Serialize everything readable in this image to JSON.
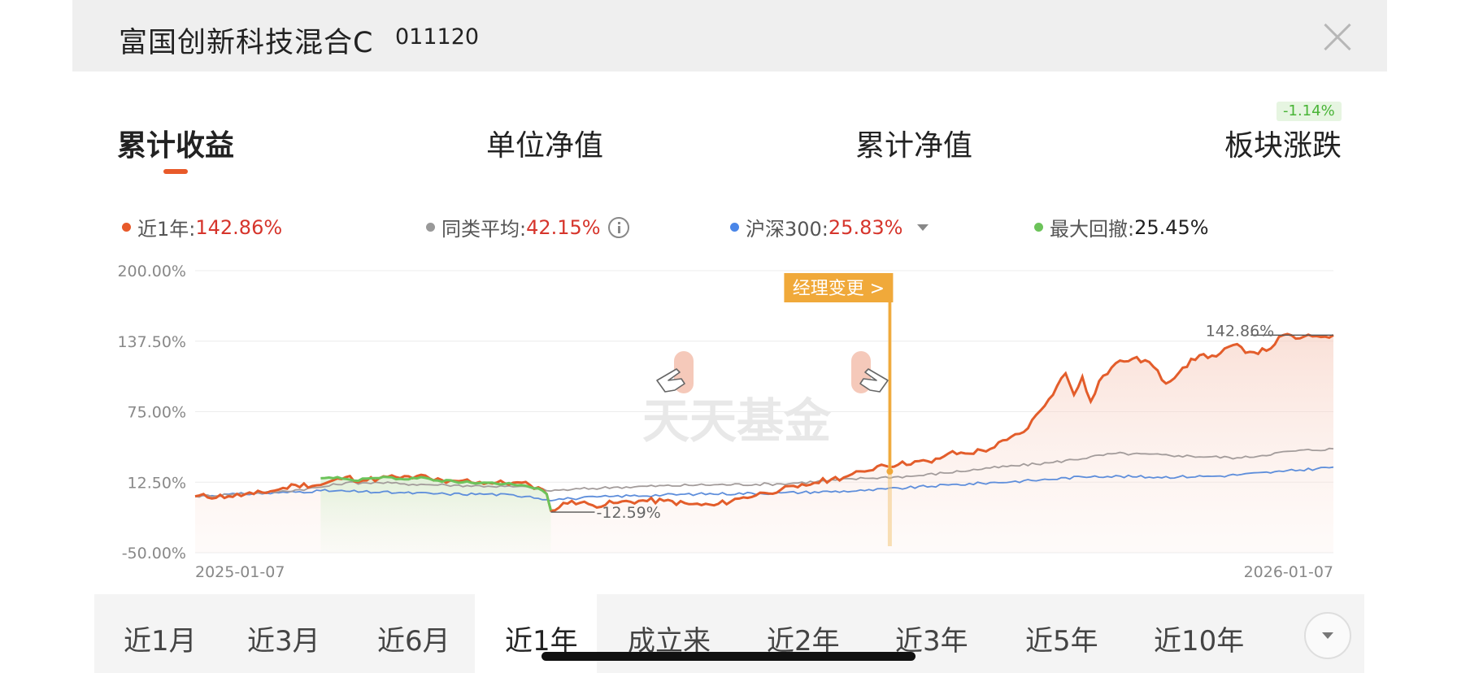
{
  "header": {
    "fund_name": "富国创新科技混合C",
    "fund_code": "011120"
  },
  "tabs": [
    {
      "label": "累计收益",
      "active": true
    },
    {
      "label": "单位净值",
      "active": false
    },
    {
      "label": "累计净值",
      "active": false
    },
    {
      "label": "板块涨跌",
      "active": false,
      "badge": "-1.14%"
    }
  ],
  "legend": [
    {
      "label": "近1年:",
      "value": "142.86%",
      "color": "#e85a2a"
    },
    {
      "label": "同类平均:",
      "value": "42.15%",
      "color": "#999999",
      "icon": "info-icon"
    },
    {
      "label": "沪深300:",
      "value": "25.83%",
      "color": "#4a86e8",
      "icon": "dropdown-icon"
    },
    {
      "label": "最大回撤:",
      "value": "25.45%",
      "color": "#6cc35a"
    }
  ],
  "chart_data": {
    "type": "line",
    "y_ticks": [
      "200.00%",
      "137.50%",
      "75.00%",
      "12.50%",
      "-50.00%"
    ],
    "ylim": [
      -50,
      200
    ],
    "x_start_label": "2025-01-07",
    "x_end_label": "2026-01-07",
    "x_count": 244,
    "series": [
      {
        "key": "fund",
        "color": "#e35d2b",
        "points": [
          [
            0,
            0
          ],
          [
            8,
            0
          ],
          [
            14,
            2
          ],
          [
            20,
            6
          ],
          [
            24,
            10
          ],
          [
            30,
            10
          ],
          [
            36,
            17
          ],
          [
            40,
            14
          ],
          [
            44,
            16
          ],
          [
            48,
            17
          ],
          [
            52,
            16
          ],
          [
            54,
            19
          ],
          [
            56,
            16
          ],
          [
            60,
            12
          ],
          [
            64,
            14
          ],
          [
            70,
            12
          ],
          [
            76,
            12
          ],
          [
            80,
            10
          ],
          [
            82,
            8
          ],
          [
            84,
            2
          ],
          [
            85,
            -12.59
          ],
          [
            90,
            -4
          ],
          [
            95,
            -8
          ],
          [
            100,
            -6
          ],
          [
            106,
            -4
          ],
          [
            112,
            -4
          ],
          [
            118,
            -7
          ],
          [
            124,
            -8
          ],
          [
            130,
            -2
          ],
          [
            136,
            3
          ],
          [
            140,
            6
          ],
          [
            144,
            8
          ],
          [
            148,
            12
          ],
          [
            152,
            15
          ],
          [
            156,
            18
          ],
          [
            160,
            22
          ],
          [
            164,
            28
          ],
          [
            168,
            28
          ],
          [
            172,
            31
          ],
          [
            176,
            30
          ],
          [
            180,
            38
          ],
          [
            184,
            38
          ],
          [
            190,
            42
          ],
          [
            194,
            50
          ],
          [
            198,
            57
          ],
          [
            202,
            76
          ],
          [
            204,
            86
          ],
          [
            206,
            98
          ],
          [
            208,
            109
          ],
          [
            210,
            90
          ],
          [
            212,
            106
          ],
          [
            214,
            84
          ],
          [
            216,
            102
          ],
          [
            220,
            118
          ],
          [
            224,
            122
          ],
          [
            228,
            119
          ],
          [
            232,
            100
          ],
          [
            236,
            114
          ],
          [
            240,
            125
          ],
          [
            244,
            124
          ],
          [
            248,
            134
          ],
          [
            252,
            128
          ],
          [
            256,
            129
          ],
          [
            260,
            142.86
          ],
          [
            264,
            140
          ],
          [
            268,
            142
          ],
          [
            272,
            142.86
          ]
        ]
      },
      {
        "key": "category_avg",
        "color": "#a39c9b",
        "points": [
          [
            0,
            0
          ],
          [
            10,
            2
          ],
          [
            20,
            4
          ],
          [
            30,
            8
          ],
          [
            36,
            12
          ],
          [
            40,
            12
          ],
          [
            44,
            12
          ],
          [
            50,
            11
          ],
          [
            60,
            10
          ],
          [
            70,
            9
          ],
          [
            80,
            8
          ],
          [
            84,
            5
          ],
          [
            90,
            6
          ],
          [
            100,
            8
          ],
          [
            120,
            10
          ],
          [
            140,
            11
          ],
          [
            160,
            16
          ],
          [
            172,
            18
          ],
          [
            190,
            25
          ],
          [
            205,
            30
          ],
          [
            220,
            38
          ],
          [
            235,
            36
          ],
          [
            250,
            34
          ],
          [
            262,
            40
          ],
          [
            272,
            42.15
          ]
        ]
      },
      {
        "key": "hs300",
        "color": "#5e8edb",
        "points": [
          [
            0,
            0
          ],
          [
            10,
            2
          ],
          [
            20,
            3
          ],
          [
            30,
            5
          ],
          [
            40,
            4
          ],
          [
            50,
            3
          ],
          [
            60,
            2
          ],
          [
            70,
            2
          ],
          [
            80,
            0
          ],
          [
            84,
            -3
          ],
          [
            90,
            -2
          ],
          [
            100,
            0
          ],
          [
            120,
            2
          ],
          [
            140,
            3
          ],
          [
            160,
            5
          ],
          [
            180,
            10
          ],
          [
            200,
            14
          ],
          [
            215,
            18
          ],
          [
            230,
            17
          ],
          [
            245,
            18
          ],
          [
            260,
            22
          ],
          [
            272,
            25.83
          ]
        ]
      }
    ],
    "drawdown_segment": [
      [
        30,
        16
      ],
      [
        34,
        17
      ],
      [
        38,
        14
      ],
      [
        42,
        16
      ],
      [
        46,
        17
      ],
      [
        50,
        15
      ],
      [
        54,
        17
      ],
      [
        58,
        14
      ],
      [
        62,
        13
      ],
      [
        66,
        12
      ],
      [
        70,
        12
      ],
      [
        74,
        11
      ],
      [
        78,
        10
      ],
      [
        82,
        7
      ],
      [
        84,
        2
      ],
      [
        85,
        -12.59
      ]
    ],
    "annotations": [
      {
        "type": "min",
        "text": "-12.59%",
        "x": 85,
        "y": -12.59
      },
      {
        "type": "max",
        "text": "142.86%",
        "x": 260,
        "y": 142.86
      },
      {
        "type": "event",
        "text": "经理变更 >",
        "x": 166
      }
    ],
    "watermark": "天天基金",
    "grid": true
  },
  "periods": [
    {
      "label": "近1月",
      "active": false
    },
    {
      "label": "近3月",
      "active": false
    },
    {
      "label": "近6月",
      "active": false
    },
    {
      "label": "近1年",
      "active": true
    },
    {
      "label": "成立来",
      "active": false
    },
    {
      "label": "近2年",
      "active": false
    },
    {
      "label": "近3年",
      "active": false
    },
    {
      "label": "近5年",
      "active": false
    },
    {
      "label": "近10年",
      "active": false
    }
  ]
}
